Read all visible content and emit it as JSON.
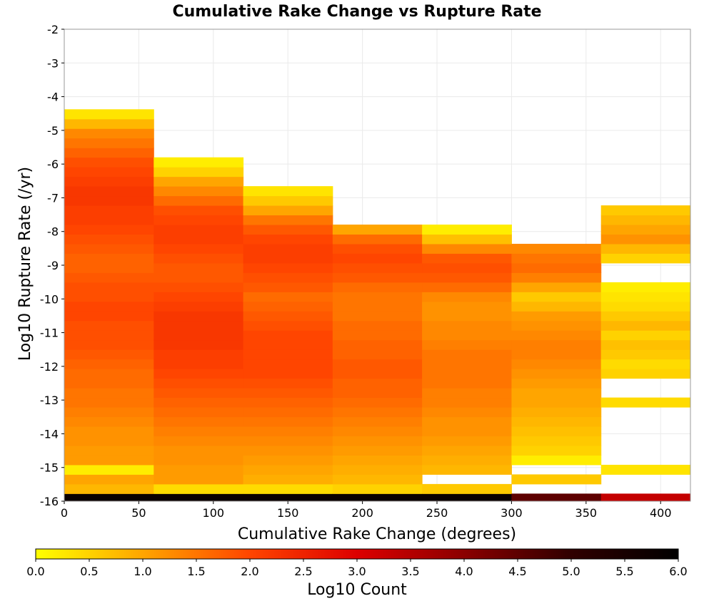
{
  "chart_data": {
    "type": "heatmap",
    "title": "Cumulative Rake Change vs Rupture Rate",
    "xlabel": "Cumulative Rake Change (degrees)",
    "ylabel": "Log10 Rupture Rate (/yr)",
    "xlim": [
      0,
      420
    ],
    "ylim": [
      -16,
      -2
    ],
    "x_ticks": [
      0,
      50,
      100,
      150,
      200,
      250,
      300,
      350,
      400
    ],
    "y_ticks": [
      -2,
      -3,
      -4,
      -5,
      -6,
      -7,
      -8,
      -9,
      -10,
      -11,
      -12,
      -13,
      -14,
      -15,
      -16
    ],
    "grid": true,
    "x_bin_edges": [
      0,
      60,
      120,
      180,
      240,
      300,
      360,
      420
    ],
    "y_bin_width": 0.285,
    "y_bin_start": -16.06,
    "color_scale": {
      "label": "Log10 Count",
      "min": 0.0,
      "max": 6.0,
      "ticks": [
        "0.0",
        "0.5",
        "1.0",
        "1.5",
        "2.0",
        "2.5",
        "3.0",
        "3.5",
        "4.0",
        "4.5",
        "5.0",
        "5.5",
        "6.0"
      ],
      "colors": [
        "#ffff00",
        "#ffa500",
        "#ff4500",
        "#dd0000",
        "#8b0000",
        "#300000",
        "#000000"
      ]
    },
    "columns": [
      {
        "x_range": [
          0,
          60
        ],
        "log10_counts_from_bottom": [
          5.8,
          0.8,
          1.0,
          0.2,
          1.1,
          1.1,
          1.2,
          1.2,
          1.3,
          1.4,
          1.5,
          1.5,
          1.6,
          1.6,
          1.7,
          1.8,
          1.9,
          1.9,
          1.9,
          2.0,
          2.0,
          1.9,
          1.9,
          1.8,
          1.7,
          1.7,
          1.8,
          1.9,
          2.0,
          2.1,
          2.1,
          2.2,
          2.2,
          2.1,
          2.0,
          1.9,
          1.7,
          1.5,
          1.3,
          0.8,
          0.3
        ]
      },
      {
        "x_range": [
          60,
          120
        ],
        "log10_counts_from_bottom": [
          5.8,
          0.4,
          1.1,
          1.1,
          1.2,
          1.2,
          1.3,
          1.4,
          1.5,
          1.6,
          1.7,
          1.8,
          1.9,
          2.0,
          2.1,
          2.1,
          2.2,
          2.2,
          2.2,
          2.2,
          2.1,
          2.0,
          1.9,
          1.8,
          1.8,
          1.9,
          2.0,
          2.1,
          2.1,
          2.0,
          1.9,
          1.6,
          1.3,
          1.0,
          0.5,
          0.2
        ]
      },
      {
        "x_range": [
          120,
          180
        ],
        "log10_counts_from_bottom": [
          5.8,
          0.4,
          0.9,
          1.0,
          1.1,
          1.2,
          1.3,
          1.4,
          1.5,
          1.6,
          1.7,
          1.8,
          1.9,
          2.0,
          2.0,
          2.0,
          2.0,
          2.0,
          1.9,
          1.8,
          1.7,
          1.6,
          1.8,
          1.9,
          2.0,
          2.1,
          2.1,
          2.0,
          1.8,
          1.5,
          1.0,
          0.6,
          0.3
        ]
      },
      {
        "x_range": [
          180,
          240
        ],
        "log10_counts_from_bottom": [
          5.8,
          0.5,
          0.8,
          0.9,
          1.0,
          1.1,
          1.2,
          1.3,
          1.4,
          1.5,
          1.6,
          1.7,
          1.7,
          1.8,
          1.8,
          1.7,
          1.7,
          1.6,
          1.6,
          1.5,
          1.5,
          1.5,
          1.6,
          1.8,
          1.9,
          2.0,
          1.9,
          1.6,
          1.0
        ]
      },
      {
        "x_range": [
          240,
          300
        ],
        "log10_counts_from_bottom": [
          5.8,
          0.6,
          null,
          0.8,
          0.9,
          1.0,
          1.1,
          1.2,
          1.2,
          1.3,
          1.4,
          1.4,
          1.5,
          1.5,
          1.5,
          1.5,
          1.4,
          1.3,
          1.3,
          1.2,
          1.2,
          1.3,
          1.6,
          1.8,
          1.9,
          1.8,
          1.3,
          0.7,
          0.2
        ]
      },
      {
        "x_range": [
          300,
          360
        ],
        "log10_counts_from_bottom": [
          4.5,
          null,
          0.6,
          null,
          0.2,
          0.5,
          0.6,
          0.7,
          0.8,
          0.9,
          1.0,
          1.0,
          1.1,
          1.2,
          1.3,
          1.4,
          1.4,
          1.3,
          1.2,
          1.1,
          0.8,
          0.6,
          1.0,
          1.4,
          1.6,
          1.5,
          1.3
        ]
      },
      {
        "x_range": [
          360,
          420
        ],
        "log10_counts_from_bottom": [
          3.3,
          null,
          null,
          0.3,
          null,
          null,
          null,
          null,
          null,
          null,
          0.4,
          null,
          null,
          0.5,
          0.4,
          0.6,
          0.7,
          0.5,
          0.8,
          0.6,
          0.4,
          0.3,
          0.2,
          null,
          null,
          0.5,
          0.8,
          1.2,
          1.0,
          0.8,
          0.6
        ]
      }
    ]
  }
}
